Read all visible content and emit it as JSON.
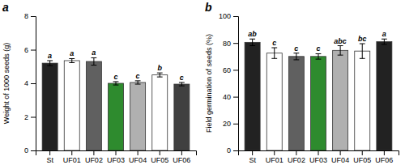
{
  "chart_data": [
    {
      "type": "bar",
      "title": "a",
      "categories": [
        "St",
        "UF01",
        "UF02",
        "UF03",
        "UF04",
        "UF05",
        "UF06"
      ],
      "values": [
        5.2,
        5.35,
        5.3,
        4.0,
        4.05,
        4.5,
        3.95
      ],
      "errors": [
        0.15,
        0.12,
        0.22,
        0.1,
        0.1,
        0.12,
        0.1
      ],
      "colors": [
        "#222222",
        "#ffffff",
        "#606060",
        "#2e8b2e",
        "#b0b0b0",
        "#ffffff",
        "#404040"
      ],
      "annotations": [
        "a",
        "a",
        "a",
        "c",
        "c",
        "b",
        "c"
      ],
      "ylabel": "Weight of 1000 seeds (g)",
      "ylim": [
        0,
        8
      ],
      "yticks": [
        0,
        2,
        4,
        6,
        8
      ],
      "grid": false
    },
    {
      "type": "bar",
      "title": "b",
      "categories": [
        "St",
        "UF01",
        "UF02",
        "UF03",
        "UF04",
        "UF05",
        "UF06"
      ],
      "values": [
        80.5,
        72.5,
        70.0,
        70.0,
        74.5,
        74.0,
        81.0
      ],
      "errors": [
        2.5,
        4.0,
        2.5,
        2.0,
        3.5,
        5.5,
        2.0
      ],
      "colors": [
        "#222222",
        "#ffffff",
        "#606060",
        "#2e8b2e",
        "#b0b0b0",
        "#ffffff",
        "#222222"
      ],
      "annotations": [
        "ab",
        "c",
        "c",
        "c",
        "abc",
        "bc",
        "a"
      ],
      "ylabel": "Field germination of seeds (%)",
      "ylim": [
        0,
        100
      ],
      "yticks": [
        0,
        20,
        40,
        60,
        80,
        100
      ],
      "grid": false
    }
  ]
}
